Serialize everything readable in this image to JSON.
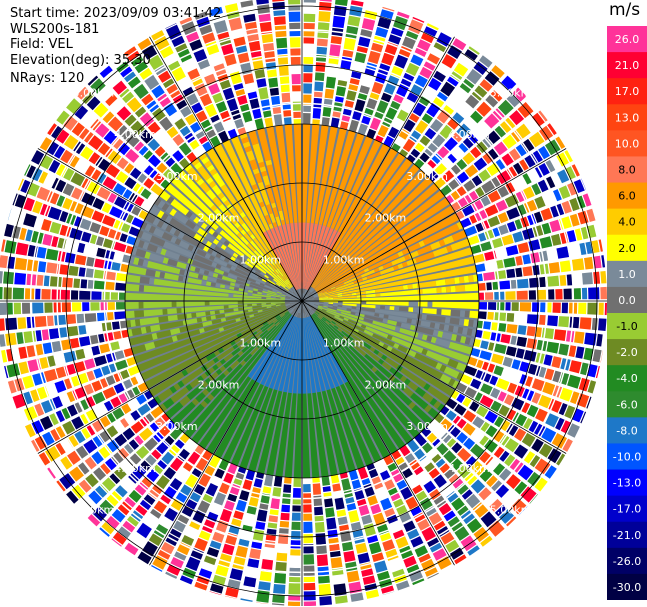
{
  "header": {
    "start_time": "Start time: 2023/09/09 03:41:42",
    "instrument": "WLS200s-181",
    "field": "Field: VEL",
    "elevation": "Elevation(deg): 35.30",
    "nrays": "NRays: 120"
  },
  "colorbar": {
    "unit": "m/s",
    "entries": [
      {
        "label": "26.0",
        "color": "#ff3399"
      },
      {
        "label": "21.0",
        "color": "#ff0033"
      },
      {
        "label": "17.0",
        "color": "#ff2211"
      },
      {
        "label": "13.0",
        "color": "#ff4411"
      },
      {
        "label": "10.0",
        "color": "#ff5522"
      },
      {
        "label": "8.0",
        "color": "#ff7755"
      },
      {
        "label": "6.0",
        "color": "#ff9900"
      },
      {
        "label": "4.0",
        "color": "#ffcc00"
      },
      {
        "label": "2.0",
        "color": "#ffff00"
      },
      {
        "label": "1.0",
        "color": "#7a8a99"
      },
      {
        "label": "0.0",
        "color": "#707070"
      },
      {
        "label": "-1.0",
        "color": "#99cc33"
      },
      {
        "label": "-2.0",
        "color": "#6e8b23"
      },
      {
        "label": "-4.0",
        "color": "#228b22"
      },
      {
        "label": "-6.0",
        "color": "#2e8b2e"
      },
      {
        "label": "-8.0",
        "color": "#1e78c8"
      },
      {
        "label": "-10.0",
        "color": "#0055ff"
      },
      {
        "label": "-13.0",
        "color": "#0000ff"
      },
      {
        "label": "-17.0",
        "color": "#0000cc"
      },
      {
        "label": "-21.0",
        "color": "#000099"
      },
      {
        "label": "-26.0",
        "color": "#000066"
      },
      {
        "label": "-30.0",
        "color": "#000044"
      }
    ]
  },
  "chart_data": {
    "type": "heatmap",
    "projection": "polar PPI",
    "nrays": 120,
    "grid": true,
    "range_ring_labels": [
      "1.00km",
      "2.00km",
      "3.00km",
      "4.00km",
      "5.00km"
    ],
    "range_rings_km": [
      1,
      2,
      3,
      4,
      5
    ],
    "background_color": "#708090",
    "velocity_regions": [
      {
        "region": "north core",
        "range_km": [
          0,
          1.2
        ],
        "value_ms": 8.0,
        "color": "#ff7755"
      },
      {
        "region": "north",
        "range_km": [
          1.2,
          2.6
        ],
        "value_ms": 6.0,
        "color": "#ff9900"
      },
      {
        "region": "north-west",
        "range_km": [
          0.8,
          2.5
        ],
        "value_ms": 2.0,
        "color": "#ffff00"
      },
      {
        "region": "east",
        "range_km": [
          0.3,
          2.8
        ],
        "value_ms": 6.0,
        "color": "#ff9900"
      },
      {
        "region": "west",
        "range_km": [
          0.3,
          2.8
        ],
        "value_ms": -1.0,
        "color": "#99cc33"
      },
      {
        "region": "south core",
        "range_km": [
          0.3,
          1.4
        ],
        "value_ms": -8.0,
        "color": "#1e78c8"
      },
      {
        "region": "south",
        "range_km": [
          1.2,
          3.0
        ],
        "value_ms": -4.0,
        "color": "#228b22"
      },
      {
        "region": "zero line",
        "range_km": [
          0.2,
          3.2
        ],
        "value_ms": 0.0,
        "color": "#707070"
      }
    ],
    "noise_beyond_km": 3.0
  }
}
